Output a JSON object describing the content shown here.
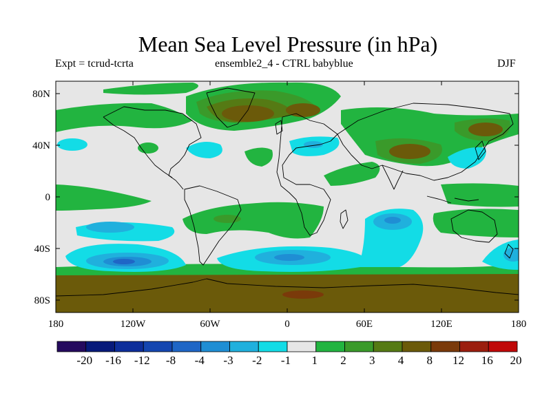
{
  "title": "Mean Sea Level Pressure (in hPa)",
  "subtitle_left": "Expt = tcrud-tcrta",
  "subtitle_center": "ensemble2_4 - CTRL babyblue",
  "subtitle_right": "DJF",
  "axes": {
    "x_ticks": [
      "180",
      "120W",
      "60W",
      "0",
      "60E",
      "120E",
      "180"
    ],
    "y_ticks": [
      "80N",
      "40N",
      "0",
      "40S",
      "80S"
    ]
  },
  "colorbar": {
    "labels": [
      "-20",
      "-16",
      "-12",
      "-8",
      "-4",
      "-3",
      "-2",
      "-1",
      "1",
      "2",
      "3",
      "4",
      "8",
      "12",
      "16",
      "20"
    ],
    "colors": [
      "#250a5e",
      "#071a7a",
      "#0d2e9a",
      "#1446b0",
      "#1f66c6",
      "#1f8ed4",
      "#20b0dd",
      "#13dce6",
      "#e6e6e6",
      "#22b440",
      "#3a9a2a",
      "#557a14",
      "#6b5a0a",
      "#7a3a0a",
      "#9b1e0e",
      "#c00808"
    ]
  }
}
